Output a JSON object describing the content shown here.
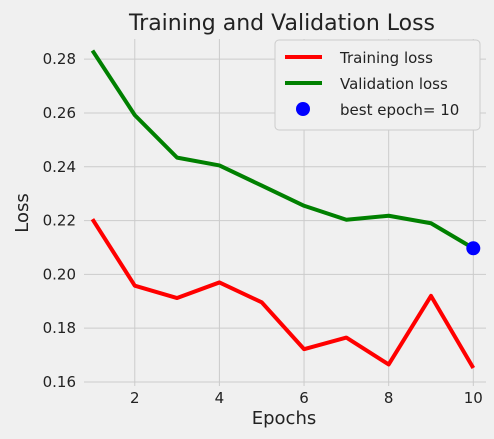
{
  "chart_data": {
    "type": "line",
    "title": "Training and Validation Loss",
    "xlabel": "Epochs",
    "ylabel": "Loss",
    "x": [
      1,
      2,
      3,
      4,
      5,
      6,
      7,
      8,
      9,
      10
    ],
    "xlim": [
      0.8,
      10.3
    ],
    "ylim": [
      0.1585,
      0.2875
    ],
    "xticks": [
      2,
      4,
      6,
      8,
      10
    ],
    "yticks": [
      0.16,
      0.18,
      0.2,
      0.22,
      0.24,
      0.26,
      0.28
    ],
    "ytick_labels": [
      "0.16",
      "0.18",
      "0.20",
      "0.22",
      "0.24",
      "0.26",
      "0.28"
    ],
    "grid": true,
    "legend_position": "top-right",
    "series": [
      {
        "name": "Training loss",
        "color": "#ff0000",
        "values": [
          0.2205,
          0.1958,
          0.1912,
          0.197,
          0.1896,
          0.1722,
          0.1765,
          0.1665,
          0.192,
          0.1652
        ]
      },
      {
        "name": "Validation loss",
        "color": "#008000",
        "values": [
          0.2832,
          0.2592,
          0.2434,
          0.2405,
          0.233,
          0.2255,
          0.2203,
          0.2218,
          0.219,
          0.2097
        ]
      }
    ],
    "markers": [
      {
        "name": "best epoch= 10",
        "color": "#0000ff",
        "x": 10,
        "y": 0.2097
      }
    ]
  }
}
